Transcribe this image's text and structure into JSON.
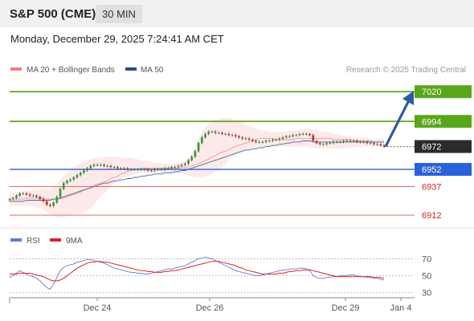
{
  "header": {
    "title": "S&P 500 (CME)",
    "timeframe": "30 MIN"
  },
  "timestamp": "Monday, December 29, 2025 7:24:41 AM CET",
  "legend": {
    "bollinger_label": "MA 20 + Bollinger Bands",
    "ma50_label": "MA 50",
    "credit": "Research © 2025 Trading Central",
    "rsi_label": "RSI",
    "rsi_ma_label": "9MA"
  },
  "colors": {
    "bollinger": "#f08080",
    "ma50": "#2c4f8f",
    "up": "#2e9a2e",
    "down": "#d42020",
    "green_level": "#5aa61a",
    "blue_level": "#2962d9",
    "red_level": "#e05555",
    "arrow": "#2c5d9f",
    "rsi": "#5b7fd6",
    "rsi_ma": "#e02020"
  },
  "chart_data": [
    {
      "type": "candlestick",
      "ylim": [
        6905,
        7030
      ],
      "x_ticks": [
        "Dec 24",
        "Dec 26",
        "Dec 29",
        "Jan 4"
      ],
      "last_price": 6972,
      "levels": [
        {
          "value": 7020,
          "label": "7020",
          "kind": "resistance-target"
        },
        {
          "value": 6994,
          "label": "6994",
          "kind": "resistance"
        },
        {
          "value": 6972,
          "label": "6972",
          "kind": "last"
        },
        {
          "value": 6952,
          "label": "6952",
          "kind": "pivot"
        },
        {
          "value": 6937,
          "label": "6937",
          "kind": "support"
        },
        {
          "value": 6912,
          "label": "6912",
          "kind": "support"
        }
      ],
      "projection": {
        "from": 6972,
        "to": 7018
      },
      "close": [
        6926,
        6927,
        6929,
        6931,
        6931,
        6930,
        6929,
        6929,
        6928,
        6926,
        6924,
        6921,
        6920,
        6923,
        6928,
        6935,
        6940,
        6942,
        6943,
        6945,
        6947,
        6949,
        6951,
        6953,
        6955,
        6956,
        6956,
        6956,
        6955,
        6955,
        6954,
        6954,
        6953,
        6953,
        6953,
        6952,
        6952,
        6952,
        6952,
        6952,
        6952,
        6951,
        6951,
        6952,
        6952,
        6952,
        6953,
        6953,
        6954,
        6954,
        6955,
        6956,
        6957,
        6960,
        6963,
        6968,
        6975,
        6980,
        6983,
        6985,
        6985,
        6984,
        6984,
        6983,
        6983,
        6982,
        6982,
        6981,
        6980,
        6979,
        6979,
        6978,
        6977,
        6976,
        6976,
        6976,
        6977,
        6977,
        6978,
        6978,
        6979,
        6980,
        6981,
        6981,
        6982,
        6982,
        6983,
        6983,
        6983,
        6982,
        6977,
        6975,
        6974,
        6974,
        6975,
        6975,
        6976,
        6976,
        6976,
        6977,
        6977,
        6977,
        6977,
        6976,
        6976,
        6976,
        6975,
        6975,
        6974,
        6974,
        6973,
        6972
      ],
      "ma20_plus_bollinger": {
        "mid": [
          6926,
          6926,
          6926,
          6926,
          6926,
          6927,
          6927,
          6927,
          6927,
          6927,
          6927,
          6926,
          6926,
          6926,
          6926,
          6926,
          6927,
          6928,
          6929,
          6930,
          6931,
          6932,
          6934,
          6935,
          6936,
          6938,
          6939,
          6940,
          6941,
          6942,
          6944,
          6945,
          6946,
          6948,
          6949,
          6950,
          6951,
          6952,
          6952,
          6953,
          6953,
          6953,
          6953,
          6953,
          6953,
          6953,
          6953,
          6953,
          6953,
          6953,
          6953,
          6954,
          6954,
          6954,
          6955,
          6956,
          6957,
          6958,
          6960,
          6961,
          6963,
          6964,
          6966,
          6967,
          6968,
          6969,
          6971,
          6972,
          6973,
          6974,
          6975,
          6976,
          6977,
          6978,
          6979,
          6979,
          6979,
          6979,
          6979,
          6978,
          6978,
          6978,
          6978,
          6978,
          6978,
          6979,
          6979,
          6979,
          6979,
          6979,
          6979,
          6979,
          6979,
          6979,
          6979,
          6979,
          6978,
          6978,
          6978,
          6978,
          6978,
          6978,
          6977,
          6977,
          6977,
          6977,
          6977,
          6977,
          6976,
          6976,
          6976,
          6976
        ],
        "upper": [
          6931,
          6932,
          6932,
          6932,
          6933,
          6934,
          6934,
          6934,
          6934,
          6935,
          6935,
          6935,
          6935,
          6937,
          6939,
          6943,
          6946,
          6949,
          6951,
          6954,
          6956,
          6957,
          6959,
          6960,
          6961,
          6962,
          6962,
          6962,
          6963,
          6963,
          6963,
          6963,
          6963,
          6962,
          6962,
          6962,
          6962,
          6961,
          6961,
          6960,
          6960,
          6959,
          6959,
          6958,
          6958,
          6957,
          6957,
          6957,
          6957,
          6957,
          6958,
          6958,
          6959,
          6962,
          6966,
          6972,
          6979,
          6985,
          6989,
          6992,
          6994,
          6995,
          6996,
          6997,
          6997,
          6997,
          6996,
          6995,
          6994,
          6993,
          6991,
          6990,
          6989,
          6988,
          6987,
          6986,
          6986,
          6985,
          6985,
          6985,
          6985,
          6985,
          6985,
          6986,
          6986,
          6986,
          6987,
          6987,
          6988,
          6988,
          6987,
          6987,
          6986,
          6985,
          6985,
          6984,
          6983,
          6983,
          6982,
          6982,
          6981,
          6981,
          6980,
          6980,
          6980,
          6980,
          6980,
          6979,
          6979,
          6979,
          6979,
          6979
        ],
        "lower": [
          6920,
          6920,
          6920,
          6920,
          6920,
          6920,
          6920,
          6920,
          6919,
          6918,
          6917,
          6915,
          6913,
          6911,
          6910,
          6910,
          6910,
          6911,
          6912,
          6913,
          6913,
          6913,
          6914,
          6916,
          6918,
          6921,
          6925,
          6928,
          6931,
          6934,
          6937,
          6940,
          6942,
          6944,
          6945,
          6946,
          6947,
          6948,
          6948,
          6949,
          6949,
          6949,
          6949,
          6949,
          6949,
          6949,
          6949,
          6949,
          6949,
          6949,
          6948,
          6948,
          6948,
          6947,
          6946,
          6945,
          6945,
          6945,
          6946,
          6947,
          6948,
          6950,
          6952,
          6954,
          6957,
          6960,
          6962,
          6965,
          6967,
          6968,
          6969,
          6970,
          6971,
          6972,
          6972,
          6972,
          6972,
          6972,
          6972,
          6972,
          6972,
          6972,
          6972,
          6972,
          6972,
          6972,
          6972,
          6972,
          6972,
          6971,
          6971,
          6970,
          6970,
          6970,
          6970,
          6970,
          6970,
          6970,
          6970,
          6970,
          6971,
          6971,
          6971,
          6972,
          6972,
          6972,
          6972,
          6972,
          6972,
          6972,
          6972,
          6972
        ]
      },
      "ma50": [
        6924,
        6924,
        6924,
        6924,
        6924,
        6925,
        6925,
        6925,
        6925,
        6925,
        6925,
        6925,
        6925,
        6926,
        6926,
        6927,
        6928,
        6929,
        6930,
        6931,
        6932,
        6933,
        6934,
        6935,
        6936,
        6937,
        6938,
        6939,
        6940,
        6940,
        6941,
        6942,
        6942,
        6943,
        6943,
        6944,
        6944,
        6945,
        6945,
        6946,
        6946,
        6947,
        6947,
        6948,
        6948,
        6948,
        6949,
        6949,
        6949,
        6950,
        6950,
        6951,
        6951,
        6952,
        6953,
        6954,
        6955,
        6956,
        6957,
        6958,
        6959,
        6960,
        6961,
        6962,
        6963,
        6964,
        6965,
        6966,
        6967,
        6968,
        6969,
        6969,
        6970,
        6970,
        6971,
        6971,
        6972,
        6972,
        6973,
        6973,
        6974,
        6974,
        6975,
        6975,
        6976,
        6976,
        6976,
        6977,
        6977,
        6977,
        6976,
        6976,
        6976,
        6976,
        6976,
        6976,
        6976,
        6976,
        6976,
        6976,
        6976,
        6976,
        6976,
        6976,
        6976,
        6976,
        6976,
        6976,
        6976,
        6976,
        6976,
        6976
      ]
    },
    {
      "type": "line",
      "title": "RSI",
      "ylim": [
        25,
        80
      ],
      "y_ticks": [
        70,
        50,
        30
      ],
      "series": [
        {
          "name": "RSI",
          "values": [
            48,
            50,
            53,
            56,
            54,
            52,
            50,
            49,
            47,
            44,
            40,
            36,
            34,
            40,
            48,
            56,
            60,
            62,
            63,
            64,
            66,
            67,
            68,
            69,
            69,
            68,
            67,
            66,
            65,
            63,
            61,
            59,
            58,
            57,
            56,
            55,
            54,
            54,
            53,
            53,
            52,
            52,
            53,
            54,
            55,
            56,
            57,
            58,
            58,
            59,
            60,
            61,
            62,
            64,
            66,
            68,
            70,
            71,
            72,
            71,
            70,
            68,
            66,
            64,
            62,
            60,
            58,
            56,
            55,
            54,
            53,
            52,
            51,
            50,
            50,
            51,
            52,
            53,
            54,
            55,
            56,
            57,
            57,
            58,
            58,
            58,
            59,
            59,
            58,
            56,
            50,
            48,
            47,
            47,
            48,
            48,
            49,
            49,
            50,
            50,
            50,
            51,
            51,
            50,
            49,
            49,
            48,
            48,
            47,
            47,
            46,
            45
          ]
        },
        {
          "name": "9MA",
          "values": [
            52,
            52,
            52,
            53,
            53,
            53,
            53,
            52,
            51,
            50,
            49,
            47,
            45,
            44,
            44,
            45,
            47,
            50,
            53,
            56,
            59,
            61,
            63,
            65,
            66,
            66,
            67,
            67,
            66,
            66,
            65,
            64,
            63,
            62,
            61,
            60,
            59,
            58,
            57,
            56,
            56,
            55,
            55,
            54,
            54,
            54,
            55,
            55,
            56,
            56,
            57,
            58,
            59,
            60,
            61,
            62,
            63,
            64,
            65,
            66,
            67,
            67,
            67,
            66,
            65,
            64,
            63,
            62,
            60,
            59,
            57,
            56,
            55,
            54,
            53,
            52,
            52,
            52,
            52,
            52,
            53,
            53,
            54,
            55,
            55,
            56,
            56,
            57,
            57,
            57,
            56,
            55,
            54,
            53,
            52,
            51,
            50,
            49,
            49,
            49,
            49,
            49,
            49,
            49,
            49,
            49,
            49,
            49,
            48,
            48,
            48,
            47
          ]
        }
      ]
    }
  ]
}
